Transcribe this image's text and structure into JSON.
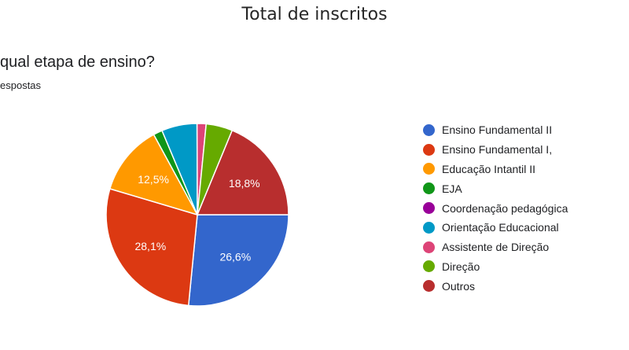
{
  "title": "Total de inscritos",
  "question": "qual etapa de ensino?",
  "subtitle": "espostas",
  "chart_data": {
    "type": "pie",
    "title": "Total de inscritos",
    "slices": [
      {
        "name": "Ensino Fundamental II",
        "value": 26.6,
        "label": "26,6%",
        "color": "#3366cc"
      },
      {
        "name": "Ensino Fundamental I,",
        "value": 28.1,
        "label": "28,1%",
        "color": "#dc3912"
      },
      {
        "name": "Educação Intantil II",
        "value": 12.5,
        "label": "12,5%",
        "color": "#ff9900"
      },
      {
        "name": "EJA",
        "value": 1.6,
        "label": "",
        "color": "#109618"
      },
      {
        "name": "Coordenação pedagógica",
        "value": 0.0,
        "label": "",
        "color": "#990099"
      },
      {
        "name": "Orientação Educacional",
        "value": 6.3,
        "label": "",
        "color": "#0099c6"
      },
      {
        "name": "Assistente de Direção",
        "value": 1.6,
        "label": "",
        "color": "#dd4477"
      },
      {
        "name": "Direção",
        "value": 4.7,
        "label": "",
        "color": "#66aa00"
      },
      {
        "name": "Outros",
        "value": 18.8,
        "label": "18,8%",
        "color": "#b82e2e"
      }
    ],
    "legend_position": "right"
  }
}
